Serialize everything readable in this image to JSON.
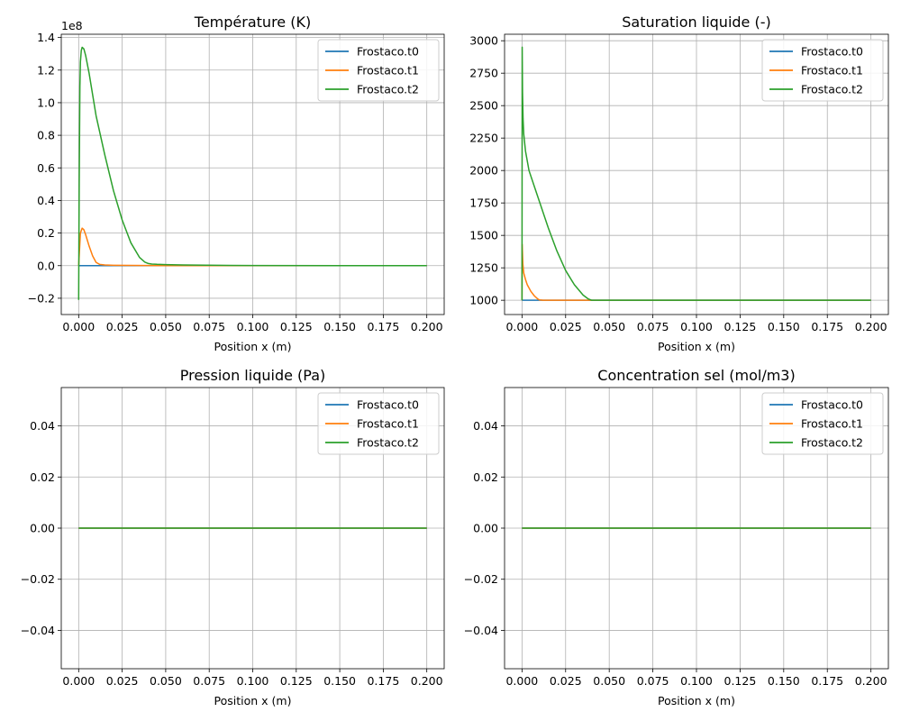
{
  "chart_data": [
    {
      "type": "line",
      "title": "Température (K)",
      "xlabel": "Position x (m)",
      "ylabel": "",
      "xlim": [
        -0.01,
        0.21
      ],
      "ylim": [
        -0.3,
        1.42
      ],
      "y_scale_multiplier": 100000000,
      "offset_text": "1e8",
      "xticks": [
        0.0,
        0.025,
        0.05,
        0.075,
        0.1,
        0.125,
        0.15,
        0.175,
        0.2
      ],
      "xtick_labels": [
        "0.000",
        "0.025",
        "0.050",
        "0.075",
        "0.100",
        "0.125",
        "0.150",
        "0.175",
        "0.200"
      ],
      "yticks": [
        -0.2,
        0.0,
        0.2,
        0.4,
        0.6,
        0.8,
        1.0,
        1.2,
        1.4
      ],
      "ytick_labels": [
        "−0.2",
        "0.0",
        "0.2",
        "0.4",
        "0.6",
        "0.8",
        "1.0",
        "1.2",
        "1.4"
      ],
      "grid": true,
      "legend": "upper right",
      "series": [
        {
          "name": "Frostaco.t0",
          "color": "#1f77b4",
          "x": [
            0.0,
            0.01,
            0.05,
            0.1,
            0.15,
            0.2
          ],
          "y": [
            0.0,
            0.0,
            0.0,
            0.0,
            0.0,
            0.0
          ]
        },
        {
          "name": "Frostaco.t1",
          "color": "#ff7f0e",
          "x": [
            0.0,
            0.001,
            0.002,
            0.003,
            0.004,
            0.006,
            0.008,
            0.01,
            0.012,
            0.015,
            0.02,
            0.05,
            0.1,
            0.15,
            0.2
          ],
          "y": [
            0.0,
            0.2,
            0.23,
            0.22,
            0.19,
            0.12,
            0.06,
            0.02,
            0.008,
            0.004,
            0.002,
            0.0,
            0.0,
            0.0,
            0.0
          ]
        },
        {
          "name": "Frostaco.t2",
          "color": "#2ca02c",
          "x": [
            0.0,
            0.0003,
            0.0007,
            0.001,
            0.0015,
            0.002,
            0.003,
            0.004,
            0.006,
            0.008,
            0.01,
            0.015,
            0.02,
            0.025,
            0.03,
            0.035,
            0.038,
            0.04,
            0.042,
            0.045,
            0.05,
            0.06,
            0.08,
            0.1,
            0.15,
            0.2
          ],
          "y": [
            -0.21,
            0.5,
            1.1,
            1.25,
            1.32,
            1.34,
            1.33,
            1.29,
            1.18,
            1.05,
            0.92,
            0.68,
            0.46,
            0.28,
            0.14,
            0.05,
            0.022,
            0.013,
            0.01,
            0.008,
            0.006,
            0.004,
            0.002,
            0.001,
            0.0,
            0.0
          ]
        }
      ]
    },
    {
      "type": "line",
      "title": "Saturation liquide (-)",
      "xlabel": "Position x (m)",
      "ylabel": "",
      "xlim": [
        -0.01,
        0.21
      ],
      "ylim": [
        890,
        3050
      ],
      "xticks": [
        0.0,
        0.025,
        0.05,
        0.075,
        0.1,
        0.125,
        0.15,
        0.175,
        0.2
      ],
      "xtick_labels": [
        "0.000",
        "0.025",
        "0.050",
        "0.075",
        "0.100",
        "0.125",
        "0.150",
        "0.175",
        "0.200"
      ],
      "yticks": [
        1000,
        1250,
        1500,
        1750,
        2000,
        2250,
        2500,
        2750,
        3000
      ],
      "ytick_labels": [
        "1000",
        "1250",
        "1500",
        "1750",
        "2000",
        "2250",
        "2500",
        "2750",
        "3000"
      ],
      "grid": true,
      "legend": "upper right",
      "series": [
        {
          "name": "Frostaco.t0",
          "color": "#1f77b4",
          "x": [
            0.0,
            0.01,
            0.05,
            0.1,
            0.15,
            0.2
          ],
          "y": [
            1000,
            1000,
            1000,
            1000,
            1000,
            1000
          ]
        },
        {
          "name": "Frostaco.t1",
          "color": "#ff7f0e",
          "x": [
            0.0,
            0.0001,
            0.0005,
            0.001,
            0.002,
            0.003,
            0.005,
            0.007,
            0.009,
            0.01,
            0.012,
            0.05,
            0.1,
            0.15,
            0.2
          ],
          "y": [
            1000,
            1430,
            1280,
            1210,
            1160,
            1120,
            1070,
            1035,
            1010,
            1003,
            1000,
            1000,
            1000,
            1000,
            1000
          ]
        },
        {
          "name": "Frostaco.t2",
          "color": "#2ca02c",
          "x": [
            0.0,
            0.0001,
            0.0003,
            0.0006,
            0.001,
            0.002,
            0.004,
            0.007,
            0.01,
            0.015,
            0.02,
            0.025,
            0.03,
            0.035,
            0.038,
            0.04,
            0.05,
            0.1,
            0.15,
            0.2
          ],
          "y": [
            1000,
            2950,
            2600,
            2400,
            2280,
            2150,
            2000,
            1880,
            1760,
            1560,
            1380,
            1230,
            1120,
            1040,
            1010,
            1000,
            1000,
            1000,
            1000,
            1000
          ]
        }
      ]
    },
    {
      "type": "line",
      "title": "Pression liquide (Pa)",
      "xlabel": "Position x (m)",
      "ylabel": "",
      "xlim": [
        -0.01,
        0.21
      ],
      "ylim": [
        -0.055,
        0.055
      ],
      "xticks": [
        0.0,
        0.025,
        0.05,
        0.075,
        0.1,
        0.125,
        0.15,
        0.175,
        0.2
      ],
      "xtick_labels": [
        "0.000",
        "0.025",
        "0.050",
        "0.075",
        "0.100",
        "0.125",
        "0.150",
        "0.175",
        "0.200"
      ],
      "yticks": [
        -0.04,
        -0.02,
        0.0,
        0.02,
        0.04
      ],
      "ytick_labels": [
        "−0.04",
        "−0.02",
        "0.00",
        "0.02",
        "0.04"
      ],
      "grid": true,
      "legend": "upper right",
      "series": [
        {
          "name": "Frostaco.t0",
          "color": "#1f77b4",
          "x": [
            0.0,
            0.2
          ],
          "y": [
            0.0,
            0.0
          ]
        },
        {
          "name": "Frostaco.t1",
          "color": "#ff7f0e",
          "x": [
            0.0,
            0.2
          ],
          "y": [
            0.0,
            0.0
          ]
        },
        {
          "name": "Frostaco.t2",
          "color": "#2ca02c",
          "x": [
            0.0,
            0.2
          ],
          "y": [
            0.0,
            0.0
          ]
        }
      ]
    },
    {
      "type": "line",
      "title": "Concentration sel (mol/m3)",
      "xlabel": "Position x (m)",
      "ylabel": "",
      "xlim": [
        -0.01,
        0.21
      ],
      "ylim": [
        -0.055,
        0.055
      ],
      "xticks": [
        0.0,
        0.025,
        0.05,
        0.075,
        0.1,
        0.125,
        0.15,
        0.175,
        0.2
      ],
      "xtick_labels": [
        "0.000",
        "0.025",
        "0.050",
        "0.075",
        "0.100",
        "0.125",
        "0.150",
        "0.175",
        "0.200"
      ],
      "yticks": [
        -0.04,
        -0.02,
        0.0,
        0.02,
        0.04
      ],
      "ytick_labels": [
        "−0.04",
        "−0.02",
        "0.00",
        "0.02",
        "0.04"
      ],
      "grid": true,
      "legend": "upper right",
      "series": [
        {
          "name": "Frostaco.t0",
          "color": "#1f77b4",
          "x": [
            0.0,
            0.2
          ],
          "y": [
            0.0,
            0.0
          ]
        },
        {
          "name": "Frostaco.t1",
          "color": "#ff7f0e",
          "x": [
            0.0,
            0.2
          ],
          "y": [
            0.0,
            0.0
          ]
        },
        {
          "name": "Frostaco.t2",
          "color": "#2ca02c",
          "x": [
            0.0,
            0.2
          ],
          "y": [
            0.0,
            0.0
          ]
        }
      ]
    }
  ]
}
